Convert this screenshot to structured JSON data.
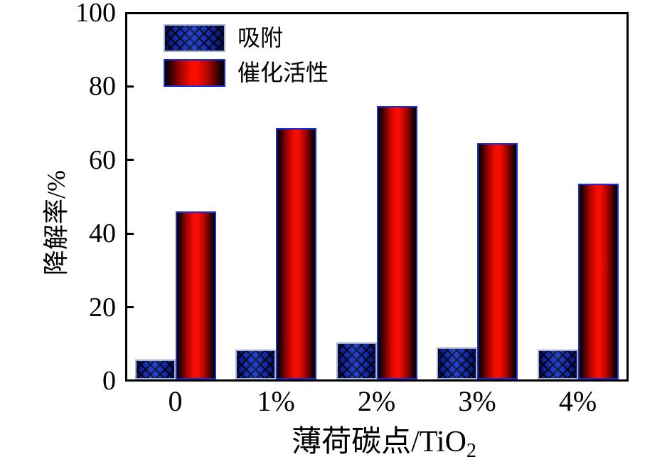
{
  "chart_data": {
    "type": "bar",
    "title": "",
    "categories": [
      "0",
      "1%",
      "2%",
      "3%",
      "4%"
    ],
    "series": [
      {
        "name": "吸附",
        "style": "blue-crosshatch",
        "color": "#1430c6",
        "values": [
          5.4,
          8.1,
          10.1,
          8.7,
          8.2
        ]
      },
      {
        "name": "催化活性",
        "style": "red-gradient-cylinder",
        "color": "#f40c00",
        "values": [
          45.6,
          68.3,
          74.2,
          64.2,
          53.2
        ]
      }
    ],
    "xlabel": {
      "text": "薄荷碳点/TiO",
      "sub": "2"
    },
    "ylabel": "降解率/%",
    "ylim": [
      0,
      100
    ],
    "yticks": [
      0,
      20,
      40,
      60,
      80,
      100
    ],
    "grid": false,
    "legend_position": "top-left",
    "frame": true,
    "tick_direction": "in",
    "bar_border_colors": {
      "blue_series": "#a8b4cc",
      "red_series": "#1a2fd8"
    },
    "axis_color": "#000000",
    "background_color": "#ffffff"
  }
}
